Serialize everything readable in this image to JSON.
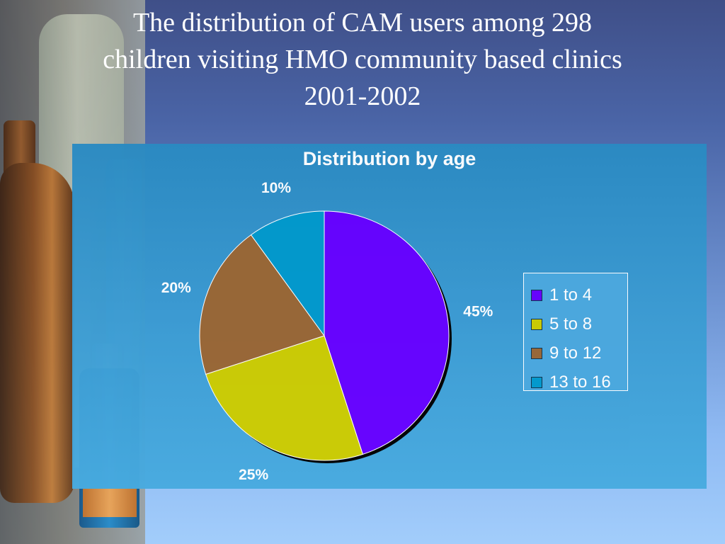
{
  "slide": {
    "title_lines": [
      "The distribution of CAM users among 298",
      "children visiting HMO community based clinics",
      "2001-2002"
    ]
  },
  "chart_data": {
    "type": "pie",
    "title": "Distribution by age",
    "categories": [
      "1 to 4",
      "5 to 8",
      "9 to 12",
      "13 to 16"
    ],
    "values": [
      45,
      25,
      20,
      10
    ],
    "labels": [
      "45%",
      "25%",
      "20%",
      "10%"
    ],
    "colors": [
      "#6600ff",
      "#cccc00",
      "#996633",
      "#0099cc"
    ],
    "legend": {
      "position": "right",
      "entries": [
        "1 to 4",
        "5 to 8",
        "9 to 12",
        "13 to 16"
      ]
    }
  }
}
